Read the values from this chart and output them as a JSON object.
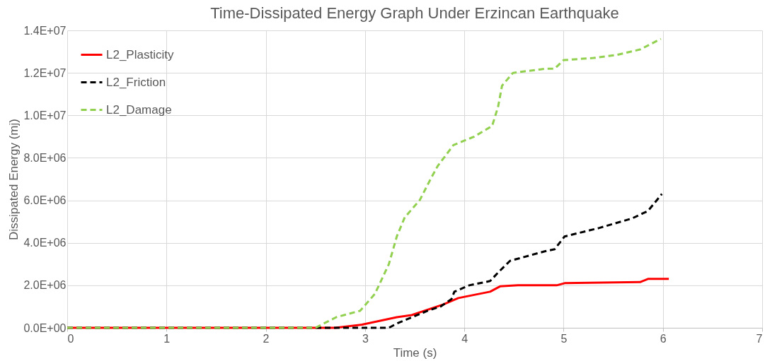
{
  "chart_data": {
    "type": "line",
    "title": "Time-Dissipated Energy Graph Under Erzincan Earthquake",
    "xlabel": "Time (s)",
    "ylabel": "Dissipated Energy (mj)",
    "xlim": [
      0,
      7
    ],
    "xticks": [
      0,
      1,
      2,
      3,
      4,
      5,
      6,
      7
    ],
    "ylim": [
      0,
      14000000
    ],
    "yticks": [
      {
        "value": 0,
        "label": "0.0E+00"
      },
      {
        "value": 2000000,
        "label": "2.0E+06"
      },
      {
        "value": 4000000,
        "label": "4.0E+06"
      },
      {
        "value": 6000000,
        "label": "6.0E+06"
      },
      {
        "value": 8000000,
        "label": "8.0E+06"
      },
      {
        "value": 10000000,
        "label": "1.0E+07"
      },
      {
        "value": 12000000,
        "label": "1.2E+07"
      },
      {
        "value": 14000000,
        "label": "1.4E+07"
      }
    ],
    "grid": true,
    "legend": "top left",
    "marker": "none",
    "series": [
      {
        "name": "L2_Plasticity",
        "color": "#ff0000",
        "line_style": "solid",
        "x": [
          0,
          2.7,
          2.97,
          3.32,
          3.47,
          3.79,
          3.94,
          4.26,
          4.36,
          4.54,
          4.67,
          4.93,
          5.01,
          5.77,
          5.85,
          6.06
        ],
        "values": [
          0,
          0,
          150000,
          500000,
          600000,
          1100000,
          1400000,
          1700000,
          1950000,
          2000000,
          2000000,
          2000000,
          2100000,
          2150000,
          2300000,
          2300000
        ]
      },
      {
        "name": "L2_Friction",
        "color": "#000000",
        "line_style": "dashed",
        "x": [
          0,
          3.0,
          3.24,
          3.32,
          3.63,
          3.76,
          3.87,
          3.9,
          4.05,
          4.26,
          4.34,
          4.46,
          4.81,
          4.91,
          5.01,
          5.36,
          5.69,
          5.85,
          5.99
        ],
        "values": [
          0,
          0,
          0,
          200000,
          800000,
          1000000,
          1350000,
          1700000,
          2000000,
          2200000,
          2600000,
          3150000,
          3600000,
          3700000,
          4300000,
          4700000,
          5150000,
          5500000,
          6300000
        ]
      },
      {
        "name": "L2_Damage",
        "color": "#92d050",
        "line_style": "dashed",
        "x": [
          0,
          2.5,
          2.71,
          2.95,
          3.1,
          3.24,
          3.32,
          3.4,
          3.55,
          3.66,
          3.73,
          3.89,
          4.1,
          4.28,
          4.34,
          4.38,
          4.49,
          4.83,
          4.91,
          5.0,
          5.3,
          5.54,
          5.77,
          5.98
        ],
        "values": [
          0,
          0,
          500000,
          800000,
          1600000,
          3000000,
          4300000,
          5200000,
          6000000,
          7000000,
          7600000,
          8600000,
          9000000,
          9500000,
          10400000,
          11400000,
          12000000,
          12200000,
          12200000,
          12600000,
          12700000,
          12850000,
          13100000,
          13600000
        ]
      }
    ]
  }
}
